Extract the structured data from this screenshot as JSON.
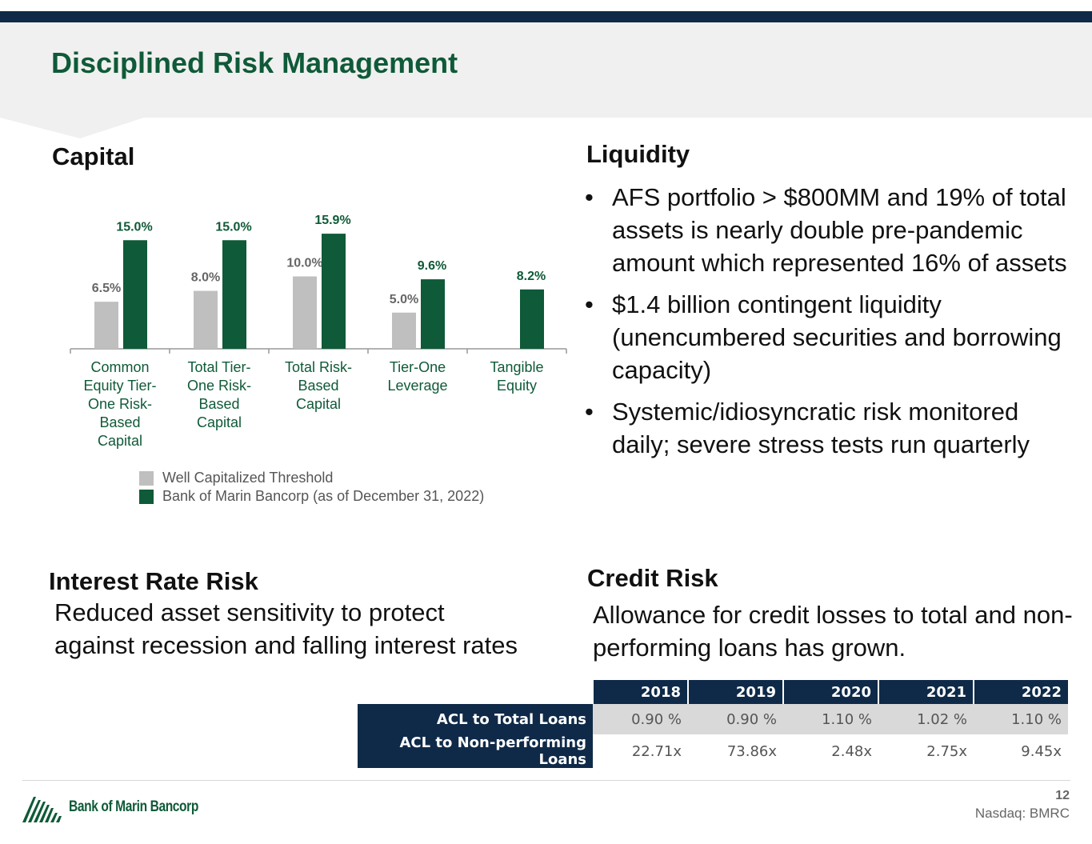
{
  "title": "Disciplined Risk Management",
  "capital": {
    "heading": "Capital",
    "legend": [
      "Well Capitalized Threshold",
      "Bank of Marin Bancorp (as of December 31, 2022)"
    ]
  },
  "chart_data": {
    "type": "bar",
    "categories": [
      [
        "Common",
        "Equity Tier-",
        "One Risk-",
        "Based",
        "Capital"
      ],
      [
        "Total Tier-",
        "One Risk-",
        "Based",
        "Capital"
      ],
      [
        "Total Risk-",
        "Based",
        "Capital"
      ],
      [
        "Tier-One",
        "Leverage"
      ],
      [
        "Tangible",
        "Equity"
      ]
    ],
    "series": [
      {
        "name": "Well Capitalized Threshold",
        "values": [
          6.5,
          8.0,
          10.0,
          5.0,
          null
        ],
        "labels": [
          "6.5%",
          "8.0%",
          "10.0%",
          "5.0%",
          ""
        ],
        "color": "#bfbfbf"
      },
      {
        "name": "Bank of Marin Bancorp (as of December 31, 2022)",
        "values": [
          15.0,
          15.0,
          15.9,
          9.6,
          8.2
        ],
        "labels": [
          "15.0%",
          "15.0%",
          "15.9%",
          "9.6%",
          "8.2%"
        ],
        "color": "#0f5a38"
      }
    ],
    "ylim": [
      0,
      16
    ],
    "legend_position": "bottom"
  },
  "liquidity": {
    "heading": "Liquidity",
    "bullets": [
      "AFS portfolio > $800MM and 19% of total assets is nearly double pre-pandemic amount which represented 16% of assets",
      "$1.4 billion contingent liquidity (unencumbered securities and borrowing capacity)",
      "Systemic/idiosyncratic risk monitored daily; severe stress tests run quarterly"
    ]
  },
  "interest_rate": {
    "heading": "Interest Rate Risk",
    "text": "Reduced asset sensitivity to protect against recession and falling interest rates"
  },
  "credit": {
    "heading": "Credit Risk",
    "text": "Allowance for credit losses to total and non-performing loans has grown.",
    "table": {
      "years": [
        "2018",
        "2019",
        "2020",
        "2021",
        "2022"
      ],
      "rows": [
        {
          "label": "ACL to Total Loans",
          "values": [
            "0.90 %",
            "0.90 %",
            "1.10 %",
            "1.02 %",
            "1.10 %"
          ]
        },
        {
          "label": "ACL to Non-performing Loans",
          "values": [
            "22.71x",
            "73.86x",
            "2.48x",
            "2.75x",
            "9.45x"
          ]
        }
      ]
    }
  },
  "footer": {
    "logo_text": "Bank of Marin Bancorp",
    "page": "12",
    "ticker": "Nasdaq: BMRC"
  }
}
